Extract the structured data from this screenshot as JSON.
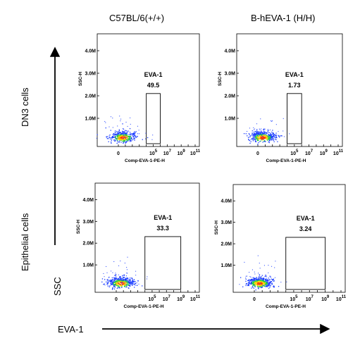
{
  "columns": [
    "C57BL/6(+/+)",
    "B-hEVA-1 (H/H)"
  ],
  "rows": [
    "DN3 cells",
    "Epithelial cells"
  ],
  "axis_titles": {
    "y": "SSC",
    "x": "EVA-1"
  },
  "chart_data": [
    {
      "type": "scatter",
      "panel": "C57BL/6(+/+) DN3 cells",
      "xlabel": "Comp-EVA-1-PE-H",
      "ylabel": "SSC-H",
      "x_ticks": [
        "0",
        "10^5",
        "10^7",
        "10^9",
        "10^11"
      ],
      "y_ticks": [
        "1.0M",
        "2.0M",
        "3.0M",
        "4.0M"
      ],
      "ylim": [
        0,
        4500000
      ],
      "gate": {
        "name": "EVA-1",
        "percent": "49.5",
        "x_range": [
          "10^4",
          "10^6"
        ],
        "y_range": [
          0,
          2100000
        ]
      }
    },
    {
      "type": "scatter",
      "panel": "B-hEVA-1 (H/H) DN3 cells",
      "xlabel": "Comp-EVA-1-PE-H",
      "ylabel": "SSC-H",
      "x_ticks": [
        "0",
        "10^5",
        "10^7",
        "10^9",
        "10^11"
      ],
      "y_ticks": [
        "1.0M",
        "2.0M",
        "3.0M",
        "4.0M"
      ],
      "ylim": [
        0,
        4500000
      ],
      "gate": {
        "name": "EVA-1",
        "percent": "1.73",
        "x_range": [
          "10^4",
          "10^6"
        ],
        "y_range": [
          0,
          2100000
        ]
      }
    },
    {
      "type": "scatter",
      "panel": "C57BL/6(+/+) Epithelial cells",
      "xlabel": "Comp-EVA-1-PE-H",
      "ylabel": "SSC-H",
      "x_ticks": [
        "0",
        "10^5",
        "10^7",
        "10^9",
        "10^11"
      ],
      "y_ticks": [
        "1.0M",
        "2.0M",
        "3.0M",
        "4.0M"
      ],
      "ylim": [
        0,
        4500000
      ],
      "gate": {
        "name": "EVA-1",
        "percent": "33.3",
        "x_range": [
          "10^4",
          "10^9"
        ],
        "y_range": [
          0,
          2300000
        ]
      }
    },
    {
      "type": "scatter",
      "panel": "B-hEVA-1 (H/H) Epithelial cells",
      "xlabel": "Comp-EVA-1-PE-H",
      "ylabel": "SSC-H",
      "x_ticks": [
        "0",
        "10^5",
        "10^7",
        "10^9",
        "10^11"
      ],
      "y_ticks": [
        "1.0M",
        "2.0M",
        "3.0M",
        "4.0M"
      ],
      "ylim": [
        0,
        4500000
      ],
      "gate": {
        "name": "EVA-1",
        "percent": "3.24",
        "x_range": [
          "10^4",
          "10^9"
        ],
        "y_range": [
          0,
          2300000
        ]
      }
    }
  ]
}
